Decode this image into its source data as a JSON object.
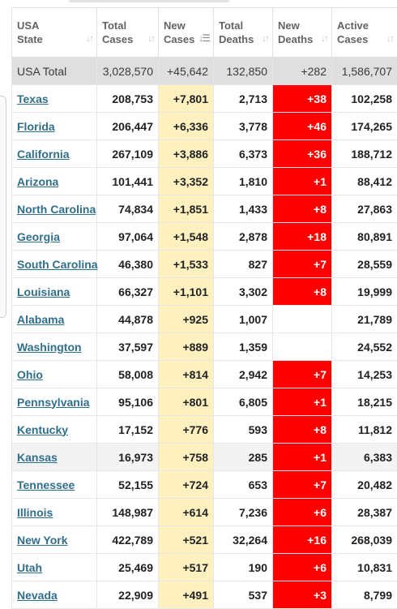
{
  "colors": {
    "new_cases_bg": "#fff0c0",
    "new_deaths_bg": "#ff0000",
    "link": "#2f6f8c",
    "total_row_bg": "#dfdfdf"
  },
  "headers": [
    {
      "line1": "USA",
      "line2": "State",
      "sort_icon": "sort-arrows-icon",
      "active": false
    },
    {
      "line1": "Total",
      "line2": "Cases",
      "sort_icon": "sort-arrows-icon",
      "active": false
    },
    {
      "line1": "New",
      "line2": "Cases",
      "sort_icon": "sort-desc-icon",
      "active": true
    },
    {
      "line1": "Total",
      "line2": "Deaths",
      "sort_icon": "sort-arrows-icon",
      "active": false
    },
    {
      "line1": "New",
      "line2": "Deaths",
      "sort_icon": "sort-arrows-icon",
      "active": false
    },
    {
      "line1": "Active",
      "line2": "Cases",
      "sort_icon": "sort-arrows-icon",
      "active": false
    }
  ],
  "total": {
    "state": "USA Total",
    "total_cases": "3,028,570",
    "new_cases": "+45,642",
    "total_deaths": "132,850",
    "new_deaths": "+282",
    "active_cases": "1,586,707"
  },
  "rows": [
    {
      "state": "Texas",
      "total_cases": "208,753",
      "new_cases": "+7,801",
      "total_deaths": "2,713",
      "new_deaths": "+38",
      "active_cases": "102,258"
    },
    {
      "state": "Florida",
      "total_cases": "206,447",
      "new_cases": "+6,336",
      "total_deaths": "3,778",
      "new_deaths": "+46",
      "active_cases": "174,265"
    },
    {
      "state": "California",
      "total_cases": "267,109",
      "new_cases": "+3,886",
      "total_deaths": "6,373",
      "new_deaths": "+36",
      "active_cases": "188,712"
    },
    {
      "state": "Arizona",
      "total_cases": "101,441",
      "new_cases": "+3,352",
      "total_deaths": "1,810",
      "new_deaths": "+1",
      "active_cases": "88,412"
    },
    {
      "state": "North Carolina",
      "total_cases": "74,834",
      "new_cases": "+1,851",
      "total_deaths": "1,433",
      "new_deaths": "+8",
      "active_cases": "27,863"
    },
    {
      "state": "Georgia",
      "total_cases": "97,064",
      "new_cases": "+1,548",
      "total_deaths": "2,878",
      "new_deaths": "+18",
      "active_cases": "80,891"
    },
    {
      "state": "South Carolina",
      "total_cases": "46,380",
      "new_cases": "+1,533",
      "total_deaths": "827",
      "new_deaths": "+7",
      "active_cases": "28,559"
    },
    {
      "state": "Louisiana",
      "total_cases": "66,327",
      "new_cases": "+1,101",
      "total_deaths": "3,302",
      "new_deaths": "+8",
      "active_cases": "19,999"
    },
    {
      "state": "Alabama",
      "total_cases": "44,878",
      "new_cases": "+925",
      "total_deaths": "1,007",
      "new_deaths": "",
      "active_cases": "21,789"
    },
    {
      "state": "Washington",
      "total_cases": "37,597",
      "new_cases": "+889",
      "total_deaths": "1,359",
      "new_deaths": "",
      "active_cases": "24,552"
    },
    {
      "state": "Ohio",
      "total_cases": "58,008",
      "new_cases": "+814",
      "total_deaths": "2,942",
      "new_deaths": "+7",
      "active_cases": "14,253"
    },
    {
      "state": "Pennsylvania",
      "total_cases": "95,106",
      "new_cases": "+801",
      "total_deaths": "6,805",
      "new_deaths": "+1",
      "active_cases": "18,215"
    },
    {
      "state": "Kentucky",
      "total_cases": "17,152",
      "new_cases": "+776",
      "total_deaths": "593",
      "new_deaths": "+8",
      "active_cases": "11,812"
    },
    {
      "state": "Kansas",
      "total_cases": "16,973",
      "new_cases": "+758",
      "total_deaths": "285",
      "new_deaths": "+1",
      "active_cases": "6,383"
    },
    {
      "state": "Tennessee",
      "total_cases": "52,155",
      "new_cases": "+724",
      "total_deaths": "653",
      "new_deaths": "+7",
      "active_cases": "20,482"
    },
    {
      "state": "Illinois",
      "total_cases": "148,987",
      "new_cases": "+614",
      "total_deaths": "7,236",
      "new_deaths": "+6",
      "active_cases": "28,387"
    },
    {
      "state": "New York",
      "total_cases": "422,789",
      "new_cases": "+521",
      "total_deaths": "32,264",
      "new_deaths": "+16",
      "active_cases": "268,039"
    },
    {
      "state": "Utah",
      "total_cases": "25,469",
      "new_cases": "+517",
      "total_deaths": "190",
      "new_deaths": "+6",
      "active_cases": "10,831"
    },
    {
      "state": "Nevada",
      "total_cases": "22,909",
      "new_cases": "+491",
      "total_deaths": "537",
      "new_deaths": "+3",
      "active_cases": "8,799"
    }
  ]
}
